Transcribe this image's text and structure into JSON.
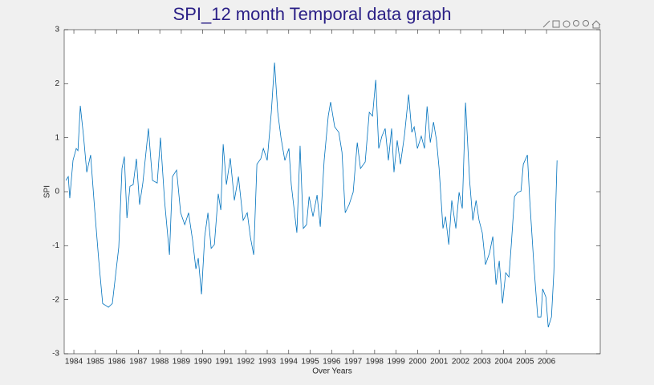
{
  "chart_data": {
    "type": "line",
    "title": "SPI_12 month Temporal data graph",
    "x_label": "Over Years",
    "y_label": "SPI",
    "color": "#0072bd",
    "x": [
      1983.63,
      1983.74,
      1983.81,
      1983.96,
      1984.11,
      1984.19,
      1984.3,
      1984.45,
      1984.6,
      1984.78,
      1984.97,
      1985.16,
      1985.34,
      1985.61,
      1985.79,
      1986.09,
      1986.24,
      1986.35,
      1986.47,
      1986.61,
      1986.76,
      1986.91,
      1987.06,
      1987.21,
      1987.47,
      1987.66,
      1987.88,
      1988.03,
      1988.22,
      1988.45,
      1988.59,
      1988.78,
      1988.97,
      1989.16,
      1989.34,
      1989.53,
      1989.68,
      1989.79,
      1989.94,
      1990.09,
      1990.24,
      1990.39,
      1990.54,
      1990.72,
      1990.84,
      1990.95,
      1991.1,
      1991.28,
      1991.47,
      1991.66,
      1991.88,
      1992.07,
      1992.22,
      1992.37,
      1992.52,
      1992.7,
      1992.82,
      1993.0,
      1993.19,
      1993.34,
      1993.49,
      1993.64,
      1993.82,
      1994.01,
      1994.12,
      1994.27,
      1994.38,
      1994.53,
      1994.68,
      1994.83,
      1994.95,
      1995.13,
      1995.32,
      1995.47,
      1995.65,
      1995.84,
      1995.95,
      1996.14,
      1996.33,
      1996.48,
      1996.63,
      1996.81,
      1997.0,
      1997.19,
      1997.34,
      1997.56,
      1997.75,
      1997.9,
      1998.05,
      1998.19,
      1998.34,
      1998.49,
      1998.64,
      1998.79,
      1998.9,
      1999.05,
      1999.2,
      1999.39,
      1999.58,
      1999.73,
      1999.84,
      1999.99,
      2000.17,
      2000.32,
      2000.44,
      2000.59,
      2000.74,
      2000.88,
      2001.0,
      2001.18,
      2001.3,
      2001.45,
      2001.59,
      2001.78,
      2001.93,
      2002.08,
      2002.23,
      2002.42,
      2002.57,
      2002.72,
      2002.86,
      2003.01,
      2003.16,
      2003.35,
      2003.5,
      2003.65,
      2003.8,
      2003.95,
      2004.1,
      2004.25,
      2004.36,
      2004.51,
      2004.66,
      2004.81,
      2004.92,
      2005.11,
      2005.22,
      2005.41,
      2005.59,
      2005.74,
      2005.82,
      2005.97,
      2006.08,
      2006.23,
      2006.34,
      2006.49
    ],
    "values": [
      0.21,
      0.28,
      -0.12,
      0.58,
      0.8,
      0.76,
      1.59,
      1.03,
      0.36,
      0.68,
      -0.34,
      -1.28,
      -2.07,
      -2.14,
      -2.07,
      -1.03,
      0.43,
      0.65,
      -0.49,
      0.1,
      0.13,
      0.61,
      -0.24,
      0.16,
      1.17,
      0.21,
      0.16,
      1.0,
      -0.16,
      -1.17,
      0.28,
      0.4,
      -0.39,
      -0.61,
      -0.39,
      -0.91,
      -1.43,
      -1.23,
      -1.9,
      -0.83,
      -0.39,
      -1.05,
      -0.98,
      -0.04,
      -0.34,
      0.88,
      0.13,
      0.62,
      -0.16,
      0.28,
      -0.53,
      -0.39,
      -0.85,
      -1.17,
      0.51,
      0.61,
      0.8,
      0.58,
      1.47,
      2.39,
      1.47,
      1.0,
      0.58,
      0.8,
      0.13,
      -0.39,
      -0.76,
      0.85,
      -0.68,
      -0.61,
      -0.09,
      -0.46,
      -0.06,
      -0.65,
      0.58,
      1.4,
      1.66,
      1.2,
      1.1,
      0.73,
      -0.39,
      -0.24,
      -0.01,
      0.91,
      0.43,
      0.55,
      1.47,
      1.4,
      2.07,
      0.8,
      1.03,
      1.17,
      0.58,
      1.17,
      0.36,
      0.95,
      0.51,
      1.05,
      1.8,
      1.1,
      1.2,
      0.8,
      1.03,
      0.8,
      1.58,
      0.91,
      1.29,
      0.95,
      0.43,
      -0.68,
      -0.46,
      -0.98,
      -0.16,
      -0.68,
      -0.01,
      -0.31,
      1.65,
      0.21,
      -0.53,
      -0.16,
      -0.53,
      -0.76,
      -1.35,
      -1.13,
      -0.83,
      -1.72,
      -1.28,
      -2.07,
      -1.5,
      -1.58,
      -0.98,
      -0.09,
      -0.01,
      0.01,
      0.51,
      0.68,
      -0.16,
      -1.35,
      -2.32,
      -2.32,
      -1.8,
      -1.95,
      -2.51,
      -2.32,
      -1.5,
      0.58
    ],
    "xlim": [
      1983.55,
      2008.5
    ],
    "xticks": [
      1984,
      1985,
      1986,
      1987,
      1988,
      1989,
      1990,
      1991,
      1992,
      1993,
      1994,
      1995,
      1996,
      1997,
      1998,
      1999,
      2000,
      2001,
      2002,
      2003,
      2004,
      2005,
      2006
    ],
    "ylim": [
      -3,
      3
    ],
    "yticks": [
      -3,
      -2,
      -1,
      0,
      1,
      2,
      3
    ],
    "grid": false
  }
}
